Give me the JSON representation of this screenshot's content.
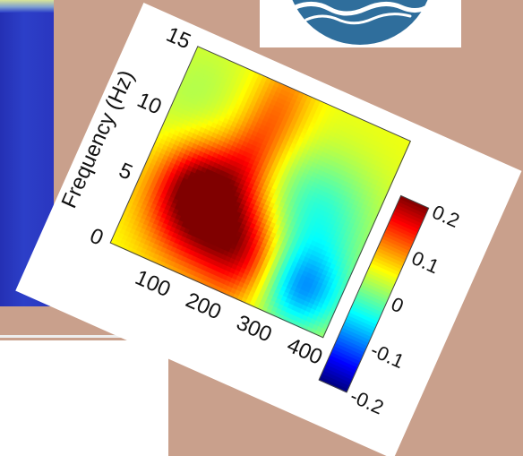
{
  "colors": {
    "background": "#c9a08c",
    "left_panel": "#2a36c0",
    "logo_circle": "#2f6e9c"
  },
  "icons": {
    "logo": "wave-circle-logo-icon"
  },
  "chart_data": {
    "type": "heatmap",
    "ylabel": "Frequency (Hz)",
    "xlabel": "",
    "xlim": [
      0,
      420
    ],
    "ylim": [
      0,
      15
    ],
    "x_ticks": [
      "100",
      "200",
      "300",
      "400"
    ],
    "y_ticks": [
      "0",
      "5",
      "10",
      "15"
    ],
    "color_range": [
      -0.2,
      0.2
    ],
    "colorbar_ticks": [
      "0.2",
      "0.1",
      "0",
      "-0.1",
      "-0.2"
    ],
    "colormap": "jet",
    "regions": [
      {
        "x": 150,
        "y": 4.5,
        "value": 0.22,
        "sx": 75,
        "sy": 2.6
      },
      {
        "x": 95,
        "y": 6.5,
        "value": 0.12,
        "sx": 45,
        "sy": 2.0
      },
      {
        "x": 250,
        "y": 2.5,
        "value": 0.14,
        "sx": 50,
        "sy": 2.2
      },
      {
        "x": 180,
        "y": 12.5,
        "value": 0.11,
        "sx": 40,
        "sy": 3.5
      },
      {
        "x": 160,
        "y": 9.0,
        "value": 0.08,
        "sx": 35,
        "sy": 2.0
      },
      {
        "x": 340,
        "y": 2.5,
        "value": -0.09,
        "sx": 65,
        "sy": 2.2
      },
      {
        "x": 310,
        "y": 7.5,
        "value": -0.04,
        "sx": 80,
        "sy": 3.0
      },
      {
        "x": 30,
        "y": 12.0,
        "value": 0.02,
        "sx": 60,
        "sy": 3.0
      }
    ]
  }
}
